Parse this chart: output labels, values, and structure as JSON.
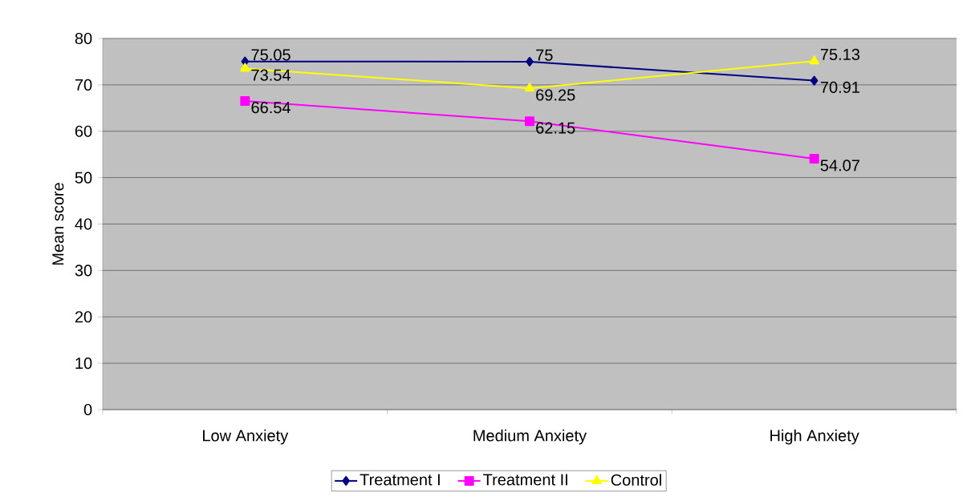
{
  "chart_data": {
    "type": "line",
    "ylabel": "Mean score",
    "categories": [
      "Low Anxiety",
      "Medium Anxiety",
      "High Anxiety"
    ],
    "series": [
      {
        "name": "Treatment I",
        "color": "#000080",
        "marker": "diamond",
        "values": [
          75.05,
          75,
          70.91
        ]
      },
      {
        "name": "Treatment II",
        "color": "#ff00ff",
        "marker": "square",
        "values": [
          66.54,
          62.15,
          54.07
        ]
      },
      {
        "name": "Control",
        "color": "#ffff00",
        "marker": "triangle",
        "values": [
          73.54,
          69.25,
          75.13
        ]
      }
    ],
    "ylim": [
      0,
      80
    ],
    "yticks": [
      0,
      10,
      20,
      30,
      40,
      50,
      60,
      70,
      80
    ],
    "grid": "y",
    "legend": "bottom",
    "data_labels": true,
    "line_style": "solid"
  }
}
